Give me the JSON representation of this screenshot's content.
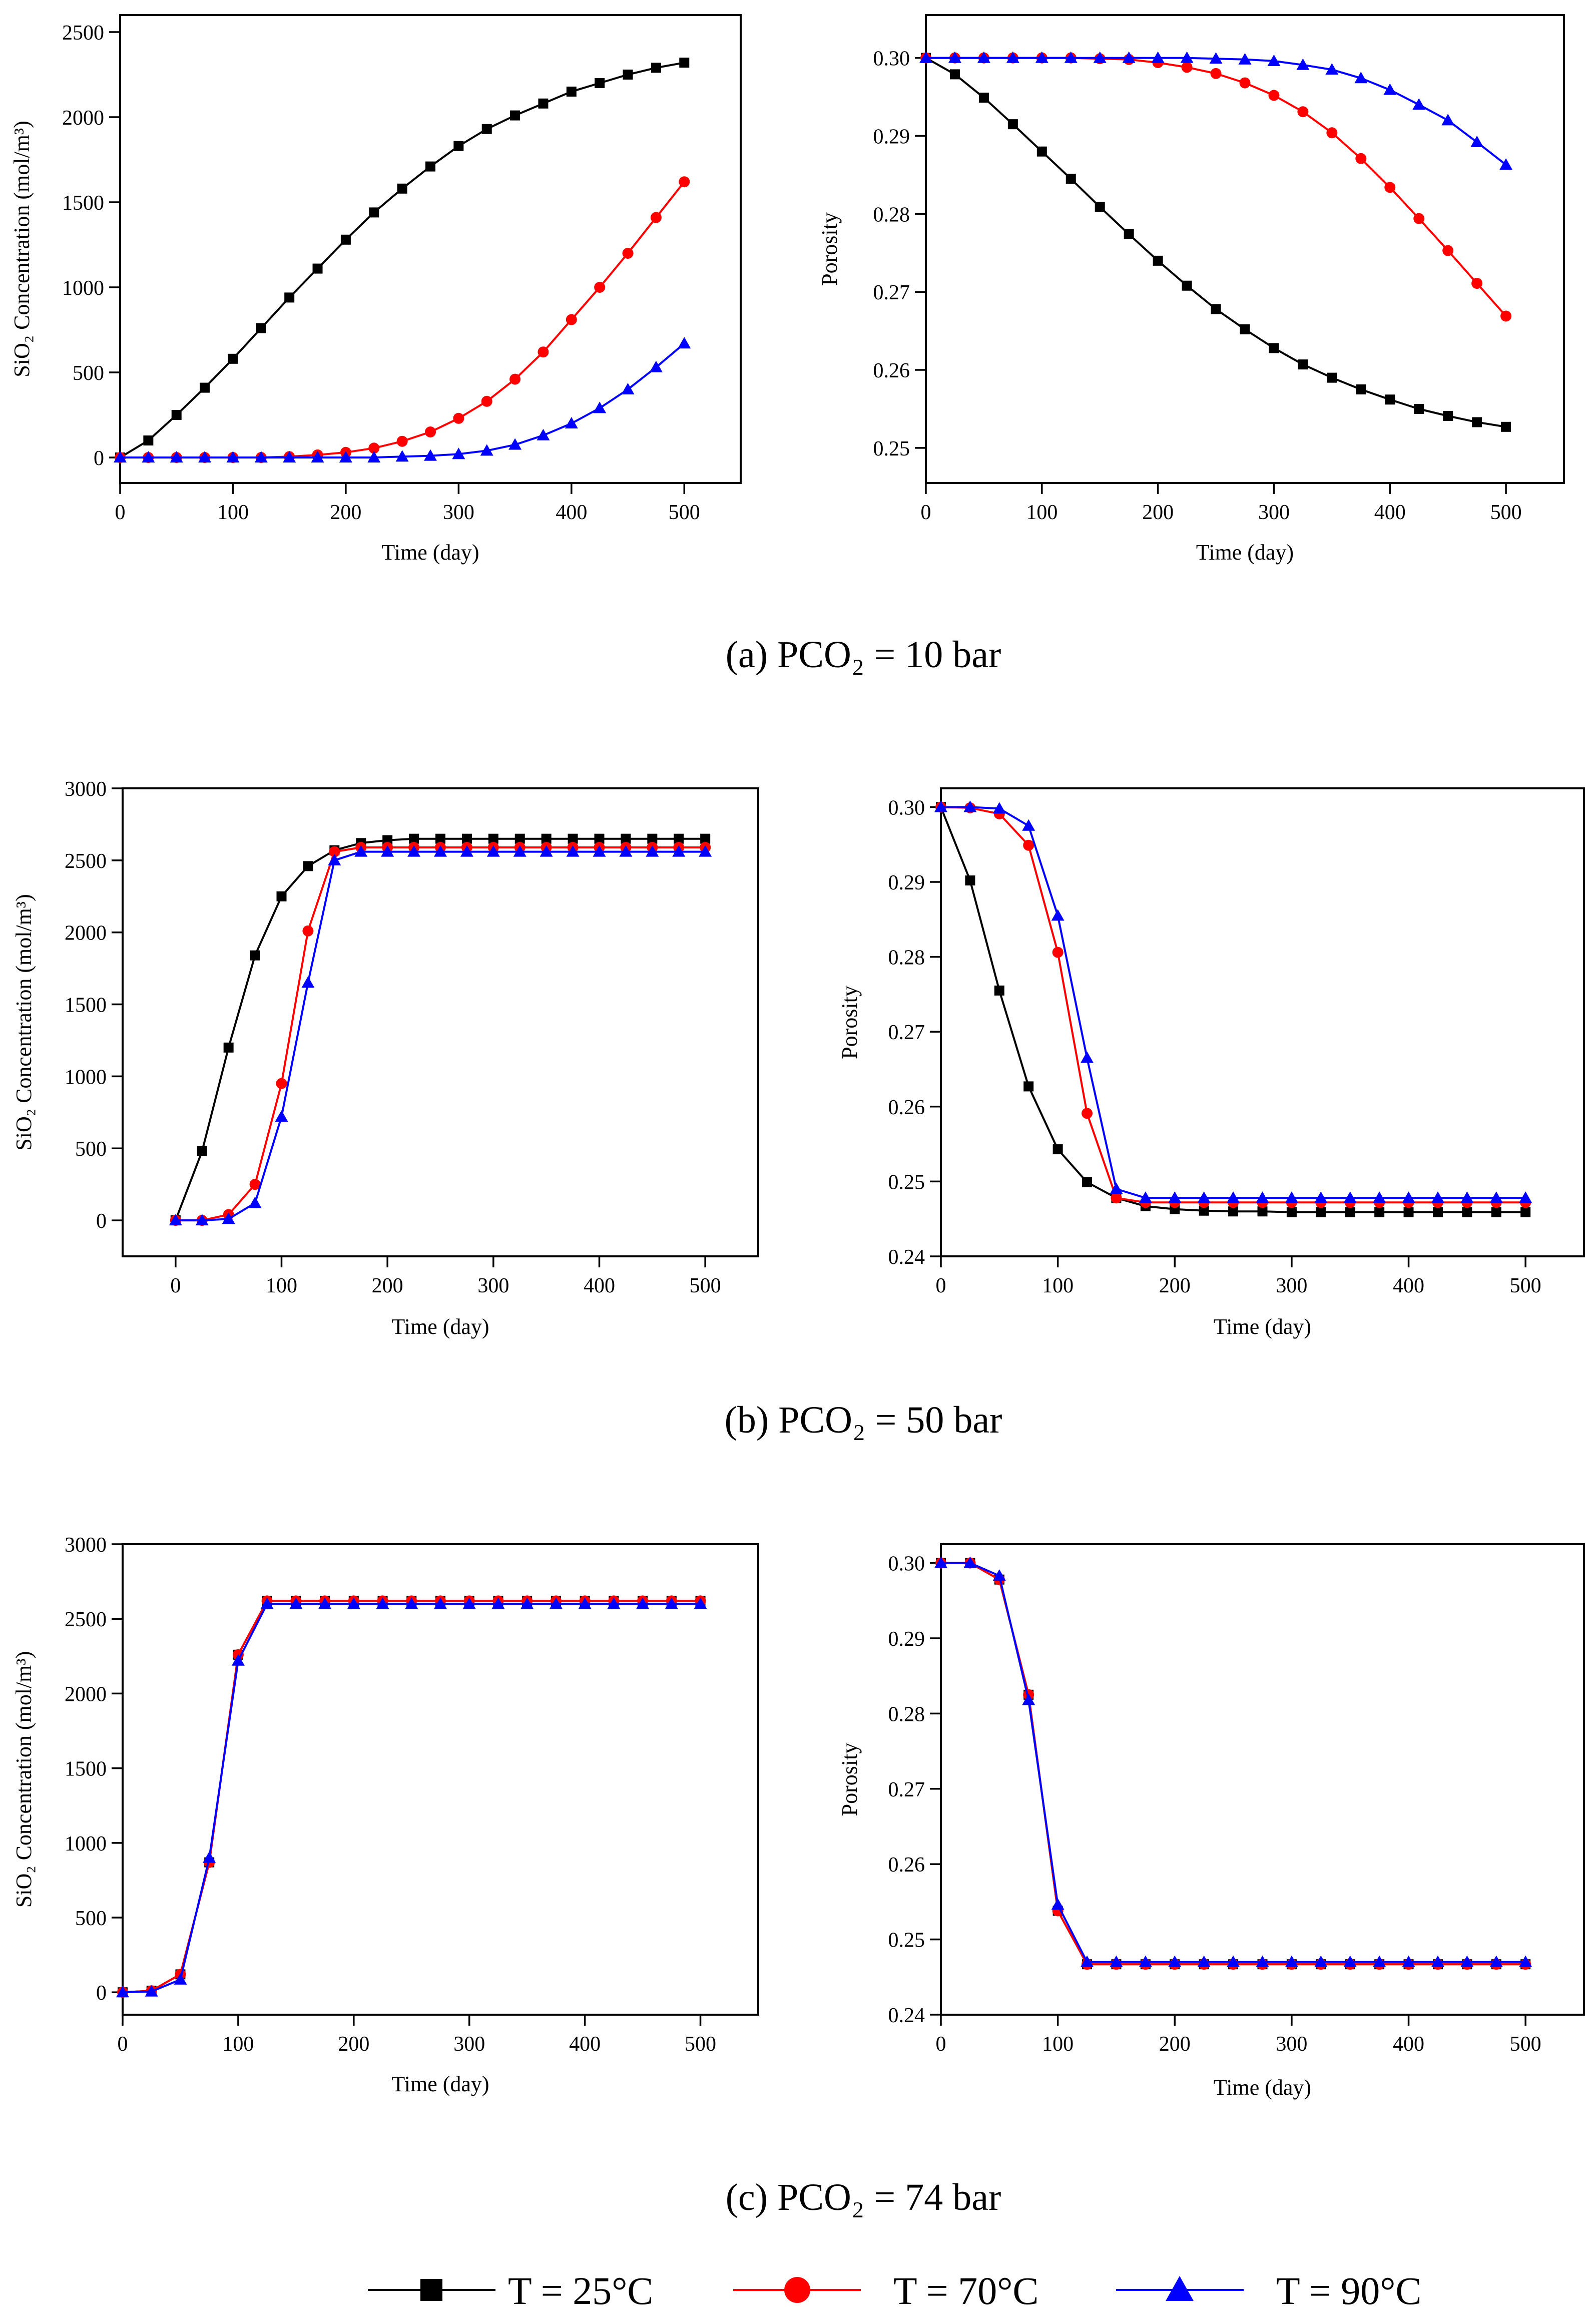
{
  "captions": [
    "(a) PCO₂ = 10 bar",
    "(b) PCO₂ = 50 bar",
    "(c) PCO₂ = 74 bar"
  ],
  "legend": [
    {
      "label": "T = 25°C",
      "color": "#000000",
      "marker": "square"
    },
    {
      "label": "T = 70°C",
      "color": "#ff0000",
      "marker": "circle"
    },
    {
      "label": "T = 90°C",
      "color": "#0000ff",
      "marker": "triangle"
    }
  ],
  "chart_data": [
    {
      "id": "a-sio2",
      "type": "line",
      "panel": "(a) left",
      "xlabel": "Time (day)",
      "ylabel": "SiO₂ Concentration (mol/m³)",
      "xlim": [
        0,
        550
      ],
      "ylim": [
        -150,
        2600
      ],
      "xticks": [
        0,
        100,
        200,
        300,
        400,
        500
      ],
      "yticks": [
        0,
        500,
        1000,
        1500,
        2000,
        2500
      ],
      "x": [
        0,
        25,
        50,
        75,
        100,
        125,
        150,
        175,
        200,
        225,
        250,
        275,
        300,
        325,
        350,
        375,
        400,
        425,
        450,
        475,
        500
      ],
      "series": [
        {
          "values": [
            0,
            100,
            250,
            410,
            580,
            760,
            940,
            1110,
            1280,
            1440,
            1580,
            1710,
            1830,
            1930,
            2010,
            2080,
            2150,
            2200,
            2250,
            2290,
            2320
          ]
        },
        {
          "values": [
            0,
            0,
            0,
            0,
            0,
            0,
            5,
            15,
            30,
            55,
            95,
            150,
            230,
            330,
            460,
            620,
            810,
            1000,
            1200,
            1410,
            1620
          ]
        },
        {
          "values": [
            0,
            0,
            0,
            0,
            0,
            0,
            0,
            0,
            0,
            0,
            5,
            10,
            20,
            40,
            75,
            130,
            200,
            290,
            400,
            530,
            670
          ]
        }
      ]
    },
    {
      "id": "a-porosity",
      "type": "line",
      "panel": "(a) right",
      "xlabel": "Time (day)",
      "ylabel": "Porosity",
      "xlim": [
        0,
        550
      ],
      "ylim": [
        0.2455,
        0.3055
      ],
      "xticks": [
        0,
        100,
        200,
        300,
        400,
        500
      ],
      "yticks": [
        0.25,
        0.26,
        0.27,
        0.28,
        0.29,
        0.3
      ],
      "ytick_labels": [
        "0.25",
        "0.26",
        "0.27",
        "0.28",
        "0.29",
        "0.30"
      ],
      "x": [
        0,
        25,
        50,
        75,
        100,
        125,
        150,
        175,
        200,
        225,
        250,
        275,
        300,
        325,
        350,
        375,
        400,
        425,
        450,
        475,
        500
      ],
      "series": [
        {
          "values": [
            0.3,
            0.2979,
            0.2949,
            0.2915,
            0.288,
            0.2845,
            0.2809,
            0.2774,
            0.274,
            0.2708,
            0.2678,
            0.2652,
            0.2628,
            0.2607,
            0.259,
            0.2575,
            0.2562,
            0.255,
            0.2541,
            0.2533,
            0.2527
          ]
        },
        {
          "values": [
            0.3,
            0.3,
            0.3,
            0.3,
            0.3,
            0.3,
            0.2999,
            0.2998,
            0.2994,
            0.2988,
            0.298,
            0.2968,
            0.2952,
            0.2931,
            0.2904,
            0.2871,
            0.2834,
            0.2794,
            0.2753,
            0.2711,
            0.2669
          ]
        },
        {
          "values": [
            0.3,
            0.3,
            0.3,
            0.3,
            0.3,
            0.3,
            0.3,
            0.3,
            0.3,
            0.3,
            0.2999,
            0.2998,
            0.2996,
            0.2991,
            0.2985,
            0.2974,
            0.2959,
            0.294,
            0.292,
            0.2892,
            0.2863
          ]
        }
      ]
    },
    {
      "id": "b-sio2",
      "type": "line",
      "panel": "(b) left",
      "xlabel": "Time (day)",
      "ylabel": "SiO₂ Concentration (mol/m³)",
      "xlim": [
        -50,
        550
      ],
      "ylim": [
        -250,
        3000
      ],
      "xticks": [
        0,
        100,
        200,
        300,
        400,
        500
      ],
      "yticks": [
        0,
        500,
        1000,
        1500,
        2000,
        2500,
        3000
      ],
      "x": [
        0,
        25,
        50,
        75,
        100,
        125,
        150,
        175,
        200,
        225,
        250,
        275,
        300,
        325,
        350,
        375,
        400,
        425,
        450,
        475,
        500
      ],
      "series": [
        {
          "values": [
            0,
            480,
            1200,
            1840,
            2250,
            2460,
            2570,
            2620,
            2640,
            2650,
            2650,
            2650,
            2650,
            2650,
            2650,
            2650,
            2650,
            2650,
            2650,
            2650,
            2650
          ]
        },
        {
          "values": [
            0,
            0,
            40,
            250,
            950,
            2010,
            2560,
            2590,
            2590,
            2590,
            2590,
            2590,
            2590,
            2590,
            2590,
            2590,
            2590,
            2590,
            2590,
            2590,
            2590
          ]
        },
        {
          "values": [
            0,
            0,
            10,
            120,
            720,
            1650,
            2500,
            2560,
            2560,
            2560,
            2560,
            2560,
            2560,
            2560,
            2560,
            2560,
            2560,
            2560,
            2560,
            2560,
            2560
          ]
        }
      ]
    },
    {
      "id": "b-porosity",
      "type": "line",
      "panel": "(b) right",
      "xlabel": "Time (day)",
      "ylabel": "Porosity",
      "xlim": [
        0,
        550
      ],
      "ylim": [
        0.24,
        0.3025
      ],
      "xticks": [
        0,
        100,
        200,
        300,
        400,
        500
      ],
      "yticks": [
        0.24,
        0.25,
        0.26,
        0.27,
        0.28,
        0.29,
        0.3
      ],
      "ytick_labels": [
        "0.24",
        "0.25",
        "0.26",
        "0.27",
        "0.28",
        "0.29",
        "0.30"
      ],
      "x": [
        0,
        25,
        50,
        75,
        100,
        125,
        150,
        175,
        200,
        225,
        250,
        275,
        300,
        325,
        350,
        375,
        400,
        425,
        450,
        475,
        500
      ],
      "series": [
        {
          "values": [
            0.3,
            0.2902,
            0.2755,
            0.2627,
            0.2543,
            0.2499,
            0.2478,
            0.2467,
            0.2463,
            0.2461,
            0.246,
            0.246,
            0.2459,
            0.2459,
            0.2459,
            0.2459,
            0.2459,
            0.2459,
            0.2459,
            0.2459,
            0.2459
          ]
        },
        {
          "values": [
            0.3,
            0.2999,
            0.2991,
            0.2949,
            0.2806,
            0.2591,
            0.2478,
            0.2472,
            0.2472,
            0.2472,
            0.2472,
            0.2472,
            0.2472,
            0.2472,
            0.2472,
            0.2472,
            0.2472,
            0.2472,
            0.2472,
            0.2472,
            0.2472
          ]
        },
        {
          "values": [
            0.3,
            0.3,
            0.2998,
            0.2975,
            0.2855,
            0.2665,
            0.249,
            0.2478,
            0.2478,
            0.2478,
            0.2478,
            0.2478,
            0.2478,
            0.2478,
            0.2478,
            0.2478,
            0.2478,
            0.2478,
            0.2478,
            0.2478,
            0.2478
          ]
        }
      ]
    },
    {
      "id": "c-sio2",
      "type": "line",
      "panel": "(c) left",
      "xlabel": "Time (day)",
      "ylabel": "SiO₂ Concentration (mol/m³)",
      "xlim": [
        0,
        550
      ],
      "ylim": [
        -150,
        3000
      ],
      "xticks": [
        0,
        100,
        200,
        300,
        400,
        500
      ],
      "yticks": [
        0,
        500,
        1000,
        1500,
        2000,
        2500,
        3000
      ],
      "x": [
        0,
        25,
        50,
        75,
        100,
        125,
        150,
        175,
        200,
        225,
        250,
        275,
        300,
        325,
        350,
        375,
        400,
        425,
        450,
        475,
        500
      ],
      "series": [
        {
          "values": [
            0,
            10,
            120,
            870,
            2260,
            2620,
            2620,
            2620,
            2620,
            2620,
            2620,
            2620,
            2620,
            2620,
            2620,
            2620,
            2620,
            2620,
            2620,
            2620,
            2620
          ]
        },
        {
          "values": [
            0,
            10,
            120,
            870,
            2260,
            2620,
            2620,
            2620,
            2620,
            2620,
            2620,
            2620,
            2620,
            2620,
            2620,
            2620,
            2620,
            2620,
            2620,
            2620,
            2620
          ]
        },
        {
          "values": [
            0,
            5,
            85,
            900,
            2220,
            2600,
            2600,
            2600,
            2600,
            2600,
            2600,
            2600,
            2600,
            2600,
            2600,
            2600,
            2600,
            2600,
            2600,
            2600,
            2600
          ]
        }
      ]
    },
    {
      "id": "c-porosity",
      "type": "line",
      "panel": "(c) right",
      "xlabel": "Time (day)",
      "ylabel": "Porosity",
      "xlim": [
        0,
        550
      ],
      "ylim": [
        0.24,
        0.3025
      ],
      "xticks": [
        0,
        100,
        200,
        300,
        400,
        500
      ],
      "yticks": [
        0.24,
        0.25,
        0.26,
        0.27,
        0.28,
        0.29,
        0.3
      ],
      "ytick_labels": [
        "0.24",
        "0.25",
        "0.26",
        "0.27",
        "0.28",
        "0.29",
        "0.30"
      ],
      "x": [
        0,
        25,
        50,
        75,
        100,
        125,
        150,
        175,
        200,
        225,
        250,
        275,
        300,
        325,
        350,
        375,
        400,
        425,
        450,
        475,
        500
      ],
      "series": [
        {
          "values": [
            0.3,
            0.3,
            0.2978,
            0.2825,
            0.2538,
            0.2467,
            0.2467,
            0.2467,
            0.2467,
            0.2467,
            0.2467,
            0.2467,
            0.2467,
            0.2467,
            0.2467,
            0.2467,
            0.2467,
            0.2467,
            0.2467,
            0.2467,
            0.2467
          ]
        },
        {
          "values": [
            0.3,
            0.3,
            0.2978,
            0.2825,
            0.2538,
            0.2467,
            0.2467,
            0.2467,
            0.2467,
            0.2467,
            0.2467,
            0.2467,
            0.2467,
            0.2467,
            0.2467,
            0.2467,
            0.2467,
            0.2467,
            0.2467,
            0.2467,
            0.2467
          ]
        },
        {
          "values": [
            0.3,
            0.3,
            0.2983,
            0.2818,
            0.2546,
            0.247,
            0.247,
            0.247,
            0.247,
            0.247,
            0.247,
            0.247,
            0.247,
            0.247,
            0.247,
            0.247,
            0.247,
            0.247,
            0.247,
            0.247,
            0.247
          ]
        }
      ]
    }
  ]
}
